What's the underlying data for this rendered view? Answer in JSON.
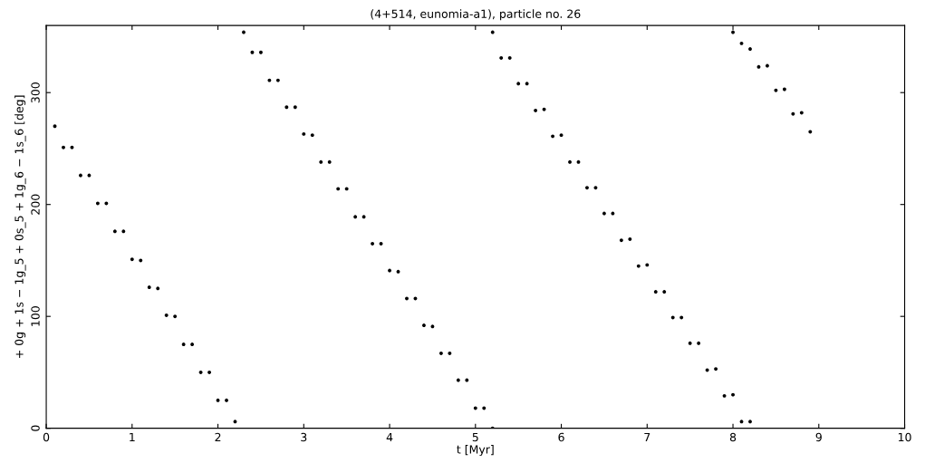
{
  "chart_data": {
    "type": "scatter",
    "title": "(4+514, eunomia-a1), particle no. 26",
    "xlabel": "t [Myr]",
    "ylabel": "+ 0g + 1s − 1g_5 + 0s_5 + 1g_6 − 1s_6 [deg]",
    "series": [
      {
        "color": "#000000",
        "x": [
          0.1,
          0.2,
          0.3,
          0.4,
          0.5,
          0.6,
          0.7,
          0.8,
          0.9,
          1.0,
          1.1,
          1.2,
          1.3,
          1.4,
          1.5,
          1.6,
          1.7,
          1.8,
          1.9,
          2.0,
          2.1,
          2.2,
          2.3,
          2.4,
          2.5,
          2.6,
          2.7,
          2.8,
          2.9,
          3.0,
          3.1,
          3.2,
          3.3,
          3.4,
          3.5,
          3.6,
          3.7,
          3.8,
          3.9,
          4.0,
          4.1,
          4.2,
          4.3,
          4.4,
          4.5,
          4.6,
          4.7,
          4.8,
          4.9,
          5.0,
          5.1,
          5.2,
          5.2,
          5.3,
          5.4,
          5.5,
          5.6,
          5.7,
          5.8,
          5.9,
          6.0,
          6.1,
          6.2,
          6.3,
          6.4,
          6.5,
          6.6,
          6.7,
          6.8,
          6.9,
          7.0,
          7.1,
          7.2,
          7.3,
          7.4,
          7.5,
          7.6,
          7.7,
          7.8,
          7.9,
          8.0,
          8.1,
          8.2,
          8.0,
          8.1,
          8.2,
          8.3,
          8.4,
          8.5,
          8.6,
          8.7,
          8.8,
          8.9
        ],
        "values": [
          270,
          251,
          251,
          226,
          226,
          201,
          201,
          176,
          176,
          151,
          150,
          126,
          125,
          101,
          100,
          75,
          75,
          50,
          50,
          25,
          25,
          6,
          354,
          336,
          336,
          311,
          311,
          287,
          287,
          263,
          262,
          238,
          238,
          214,
          214,
          189,
          189,
          165,
          165,
          141,
          140,
          116,
          116,
          92,
          91,
          67,
          67,
          43,
          43,
          18,
          18,
          0,
          354,
          331,
          331,
          308,
          308,
          284,
          285,
          261,
          262,
          238,
          238,
          215,
          215,
          192,
          192,
          168,
          169,
          145,
          146,
          122,
          122,
          99,
          99,
          76,
          76,
          52,
          53,
          29,
          30,
          6,
          6,
          354,
          344,
          339,
          323,
          324,
          302,
          303,
          281,
          282,
          265
        ]
      }
    ],
    "marker": "circle",
    "grid": false,
    "legend": false,
    "xlim": [
      0,
      10
    ],
    "xticks": [
      0,
      1,
      2,
      3,
      4,
      5,
      6,
      7,
      8,
      9,
      10
    ],
    "ylim": [
      0,
      360
    ],
    "yticks": [
      0,
      100,
      200,
      300
    ]
  }
}
